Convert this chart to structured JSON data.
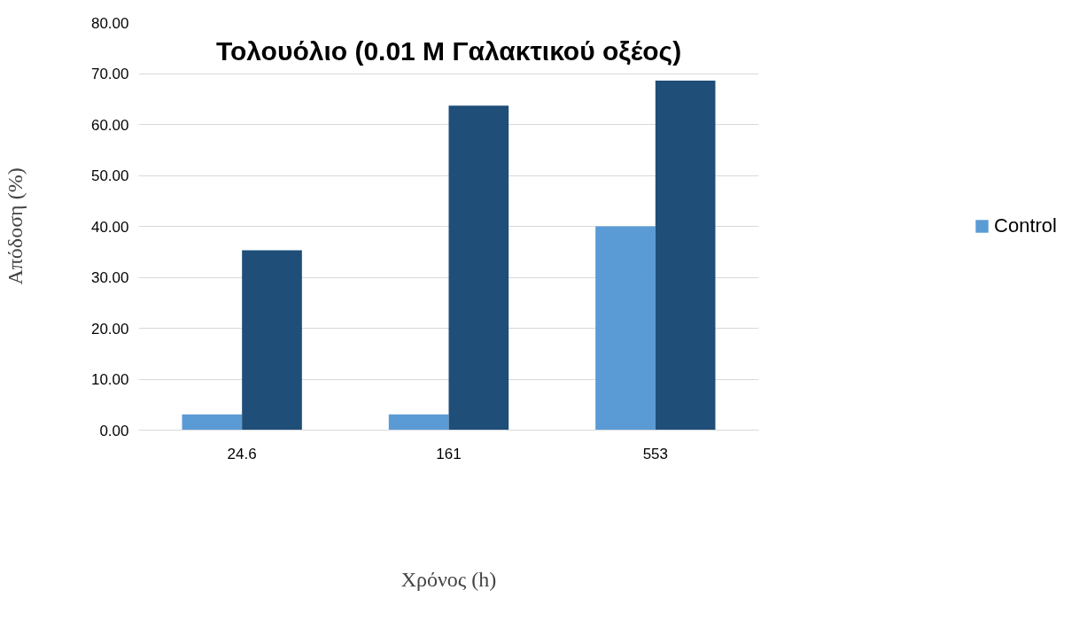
{
  "chart_data": {
    "type": "bar",
    "title": "Τολουόλιο (0.01 M Γαλακτικού οξέος)",
    "xlabel": "Χρόνος (h)",
    "ylabel": "Απόδοση (%)",
    "categories": [
      "24.6",
      "161",
      "553"
    ],
    "series": [
      {
        "name": "Control",
        "color": "#5b9bd5",
        "values": [
          3.1,
          3.1,
          40.0
        ]
      },
      {
        "color": "#1f4e79",
        "values": [
          35.3,
          63.7,
          68.6
        ]
      }
    ],
    "ylim": [
      0,
      80
    ],
    "yticks": [
      {
        "value": 0,
        "label": "0.00"
      },
      {
        "value": 10,
        "label": "10.00"
      },
      {
        "value": 20,
        "label": "20.00"
      },
      {
        "value": 30,
        "label": "30.00"
      },
      {
        "value": 40,
        "label": "40.00"
      },
      {
        "value": 50,
        "label": "50.00"
      },
      {
        "value": 60,
        "label": "60.00"
      },
      {
        "value": 70,
        "label": "70.00"
      },
      {
        "value": 80,
        "label": "80.00"
      }
    ],
    "grid": "y",
    "legend": "right"
  }
}
